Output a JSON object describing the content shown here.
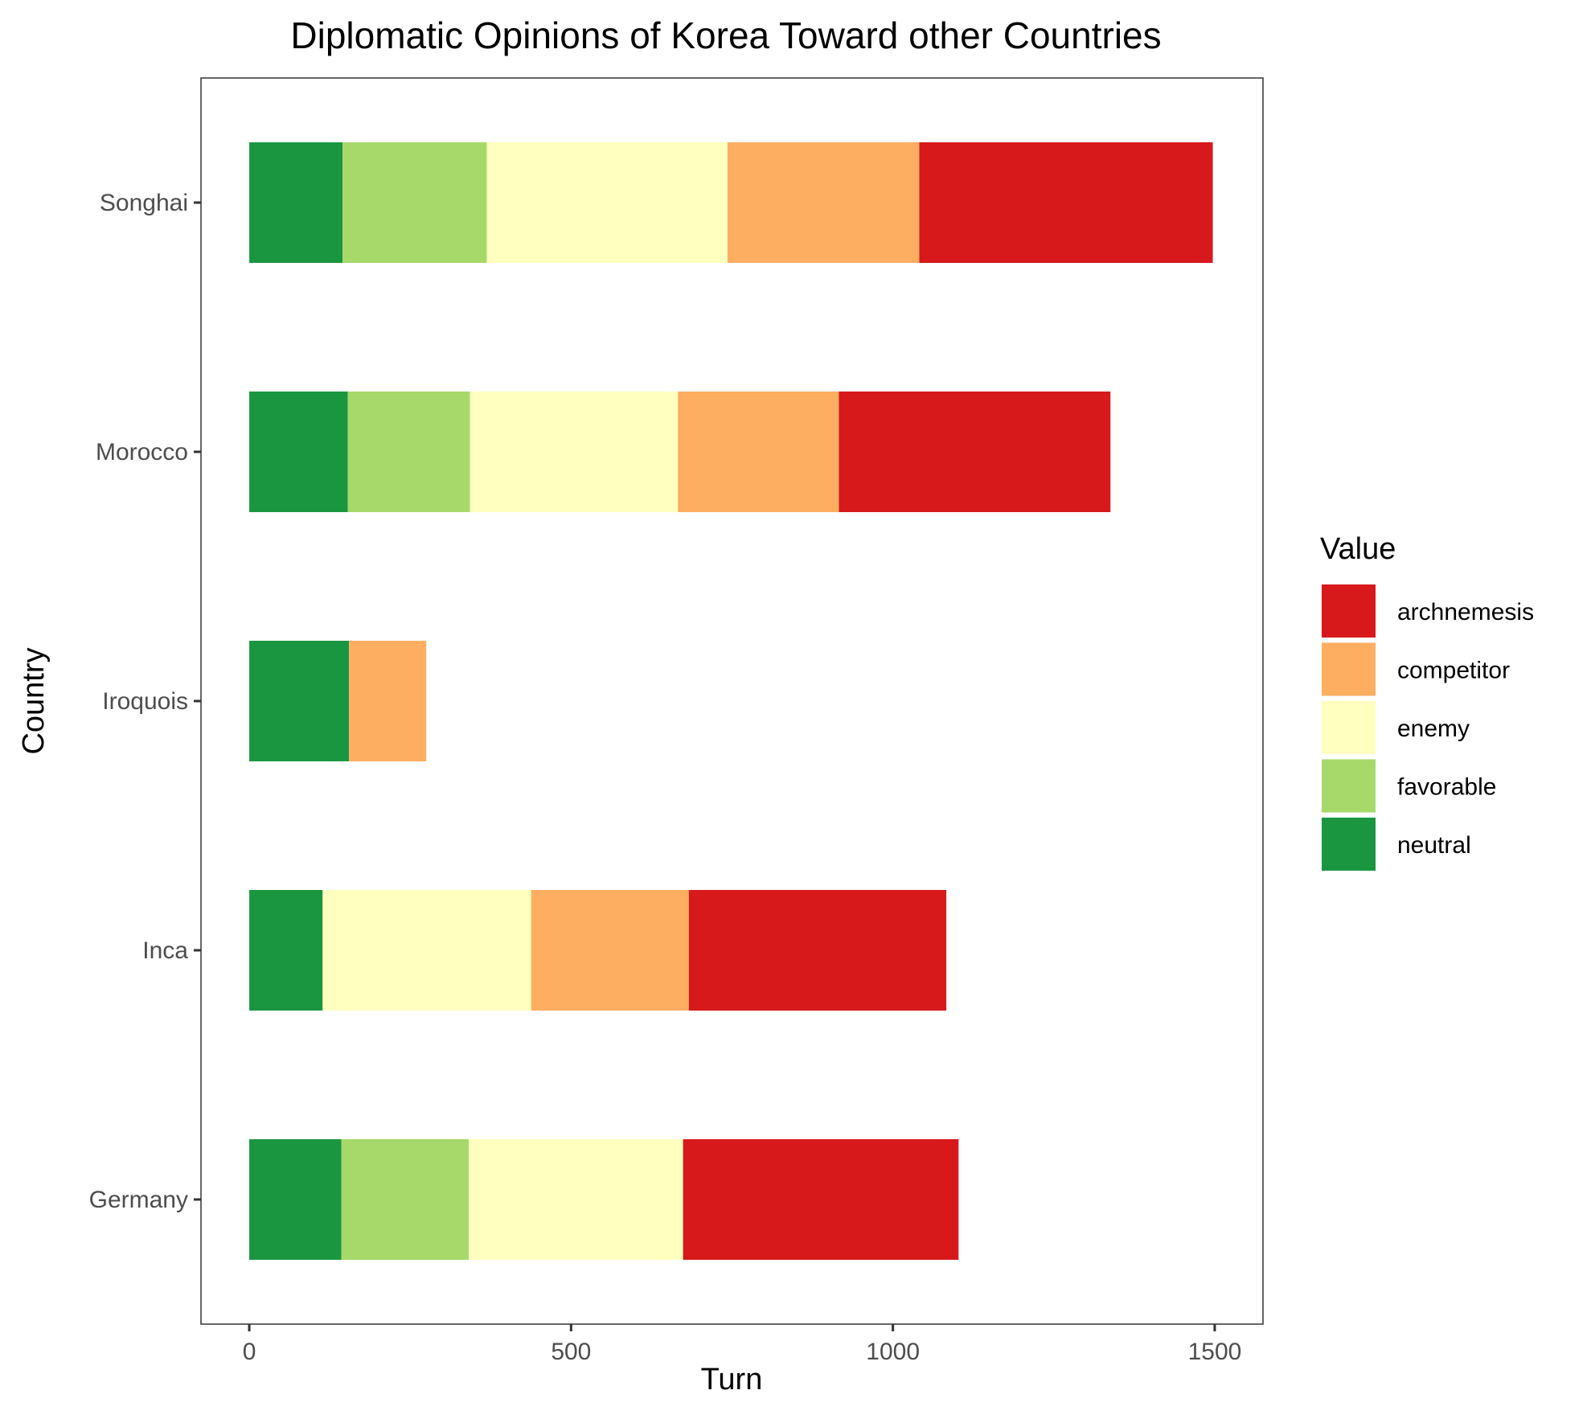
{
  "chart_data": {
    "type": "bar",
    "orientation": "horizontal",
    "stacked": true,
    "title": "Diplomatic Opinions of Korea Toward other Countries",
    "xlabel": "Turn",
    "ylabel": "Country",
    "xlim": [
      -75,
      1575
    ],
    "xticks": [
      0,
      500,
      1000,
      1500
    ],
    "grid": false,
    "legend_position": "right",
    "legend_title": "Value",
    "categories": [
      "Germany",
      "Inca",
      "Iroquois",
      "Morocco",
      "Songhai"
    ],
    "series": [
      {
        "name": "neutral",
        "color": "#1a9641",
        "values": [
          143,
          114,
          155,
          153,
          145
        ]
      },
      {
        "name": "favorable",
        "color": "#a6d96a",
        "values": [
          198,
          0,
          0,
          190,
          224
        ]
      },
      {
        "name": "enemy",
        "color": "#ffffc0",
        "values": [
          333,
          324,
          0,
          323,
          374
        ]
      },
      {
        "name": "competitor",
        "color": "#fdae61",
        "values": [
          0,
          245,
          120,
          250,
          298
        ]
      },
      {
        "name": "archnemesis",
        "color": "#d7191c",
        "values": [
          428,
          400,
          0,
          422,
          456
        ]
      }
    ],
    "legend_order": [
      "archnemesis",
      "competitor",
      "enemy",
      "favorable",
      "neutral"
    ]
  }
}
